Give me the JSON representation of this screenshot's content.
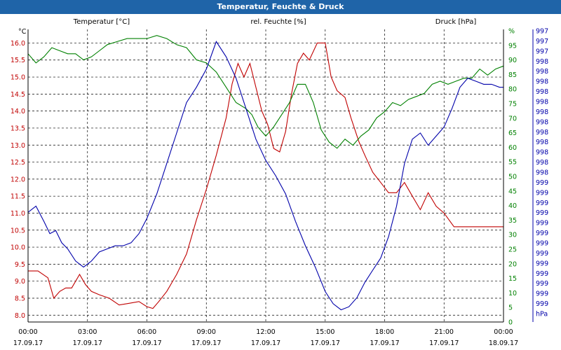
{
  "window": {
    "title": "Temperatur, Feuchte & Druck"
  },
  "colors": {
    "temperature": "#c00000",
    "humidity": "#008000",
    "pressure": "#0000aa",
    "grid": "#000000",
    "titlebar": "#1f64a8"
  },
  "chart_data": {
    "type": "line",
    "title": "Temperatur, Feuchte & Druck",
    "grid": true,
    "x_labels": [
      {
        "time": "00:00",
        "date": "17.09.17"
      },
      {
        "time": "03:00",
        "date": "17.09.17"
      },
      {
        "time": "06:00",
        "date": "17.09.17"
      },
      {
        "time": "09:00",
        "date": "17.09.17"
      },
      {
        "time": "12:00",
        "date": "17.09.17"
      },
      {
        "time": "15:00",
        "date": "17.09.17"
      },
      {
        "time": "18:00",
        "date": "17.09.17"
      },
      {
        "time": "21:00",
        "date": "17.09.17"
      },
      {
        "time": "00:00",
        "date": "18.09.17"
      }
    ],
    "xlim": [
      0,
      24
    ],
    "axes": {
      "left": {
        "label": "Temperatur [°C]",
        "unit": "°C",
        "ylim": [
          7.8,
          16.4
        ],
        "ticks": [
          "8.0",
          "8.5",
          "9.0",
          "9.5",
          "10.0",
          "10.5",
          "11.0",
          "11.5",
          "12.0",
          "12.5",
          "13.0",
          "13.5",
          "14.0",
          "14.5",
          "15.0",
          "15.5",
          "16.0"
        ]
      },
      "middle": {
        "label": "rel. Feuchte [%]",
        "unit": "%",
        "ylim": [
          0,
          96
        ],
        "ticks": [
          "0",
          "5",
          "10",
          "15",
          "20",
          "25",
          "30",
          "35",
          "40",
          "45",
          "50",
          "55",
          "60",
          "65",
          "70",
          "75",
          "80",
          "85",
          "90",
          "95",
          "%"
        ]
      },
      "right": {
        "label": "Druck [hPa]",
        "unit": "hPa",
        "ticks": [
          "997",
          "997",
          "997",
          "998",
          "998",
          "998",
          "998",
          "998",
          "998",
          "998",
          "998",
          "998",
          "998",
          "998",
          "998",
          "999",
          "999",
          "999",
          "999",
          "999",
          "999",
          "999",
          "999",
          "999",
          "999",
          "999",
          "999",
          "999",
          "hPa"
        ]
      }
    },
    "series": [
      {
        "name": "Temperatur [°C]",
        "axis": "left",
        "x": [
          0,
          0.5,
          1,
          1.3,
          1.6,
          1.9,
          2.2,
          2.6,
          2.9,
          3.2,
          3.6,
          4.1,
          4.6,
          5.1,
          5.6,
          6,
          6.3,
          6.6,
          7,
          7.5,
          8,
          8.5,
          9,
          9.5,
          10,
          10.3,
          10.6,
          10.9,
          11.2,
          11.5,
          11.8,
          12.1,
          12.4,
          12.7,
          13,
          13.3,
          13.6,
          13.9,
          14.2,
          14.6,
          15,
          15.3,
          15.6,
          16,
          16.3,
          16.7,
          17,
          17.4,
          17.8,
          18.2,
          18.6,
          19,
          19.4,
          19.8,
          20.2,
          20.6,
          21,
          21.5,
          22,
          22.3,
          22.6,
          22.9,
          23.2,
          23.6,
          24
        ],
        "y": [
          9.3,
          9.3,
          9.1,
          8.5,
          8.7,
          8.8,
          8.8,
          9.2,
          8.9,
          8.7,
          8.6,
          8.5,
          8.3,
          8.35,
          8.4,
          8.25,
          8.2,
          8.4,
          8.7,
          9.2,
          9.8,
          10.8,
          11.7,
          12.7,
          13.8,
          14.8,
          15.4,
          15.0,
          15.4,
          14.7,
          14.0,
          13.6,
          12.9,
          12.8,
          13.4,
          14.5,
          15.4,
          15.7,
          15.5,
          16.0,
          16.0,
          15.0,
          14.6,
          14.4,
          13.8,
          13.1,
          12.7,
          12.2,
          11.9,
          11.6,
          11.6,
          11.9,
          11.5,
          11.1,
          11.6,
          11.2,
          11.0,
          10.6,
          10.6,
          10.6,
          10.6,
          10.6,
          10.6,
          10.6,
          10.6
        ]
      },
      {
        "name": "rel. Feuchte [%]",
        "axis": "middle",
        "x": [
          0,
          0.4,
          0.8,
          1.2,
          1.6,
          2,
          2.4,
          2.8,
          3.2,
          3.6,
          4,
          4.5,
          5,
          5.5,
          6,
          6.5,
          7,
          7.5,
          8,
          8.5,
          9,
          9.5,
          10,
          10.5,
          11,
          11.3,
          11.6,
          12,
          12.4,
          12.8,
          13.2,
          13.6,
          14,
          14.4,
          14.8,
          15.2,
          15.6,
          16,
          16.4,
          16.8,
          17.2,
          17.6,
          18,
          18.4,
          18.8,
          19.2,
          19.6,
          20,
          20.4,
          20.8,
          21.2,
          21.6,
          22,
          22.4,
          22.8,
          23.2,
          23.6,
          24
        ],
        "y": [
          88,
          85,
          87,
          90,
          89,
          88,
          88,
          86,
          87,
          89,
          91,
          92,
          93,
          93,
          93,
          94,
          93,
          91,
          90,
          86,
          85,
          82,
          77,
          72,
          70,
          68,
          64,
          61,
          64,
          68,
          72,
          78,
          78,
          72,
          63,
          59,
          57,
          60,
          58,
          61,
          63,
          67,
          69,
          72,
          71,
          73,
          74,
          75,
          78,
          79,
          78,
          79,
          80,
          80,
          83,
          81,
          83,
          84
        ]
      },
      {
        "name": "Druck [hPa]",
        "axis": "right",
        "x": [
          0,
          0.4,
          0.8,
          1.1,
          1.4,
          1.7,
          2,
          2.4,
          2.8,
          3.2,
          3.6,
          4,
          4.4,
          4.8,
          5.2,
          5.6,
          6,
          6.5,
          7,
          7.5,
          8,
          8.5,
          9,
          9.5,
          10,
          10.5,
          11,
          11.5,
          12,
          12.5,
          13,
          13.5,
          14,
          14.5,
          15,
          15.4,
          15.8,
          16.2,
          16.6,
          17,
          17.4,
          17.8,
          18.2,
          18.6,
          19,
          19.4,
          19.8,
          20.2,
          20.6,
          21,
          21.4,
          21.8,
          22.2,
          22.6,
          23,
          23.4,
          23.8,
          24
        ],
        "y": [
          36,
          38,
          33,
          29,
          30,
          26,
          24,
          20,
          18,
          20,
          23,
          24,
          25,
          25,
          26,
          29,
          34,
          42,
          52,
          62,
          72,
          77,
          83,
          92,
          87,
          80,
          70,
          60,
          53,
          48,
          42,
          33,
          25,
          18,
          10,
          6,
          4,
          5,
          8,
          13,
          17,
          21,
          28,
          38,
          52,
          60,
          62,
          58,
          61,
          64,
          70,
          77,
          80,
          79,
          78,
          78,
          77,
          77
        ]
      }
    ]
  }
}
